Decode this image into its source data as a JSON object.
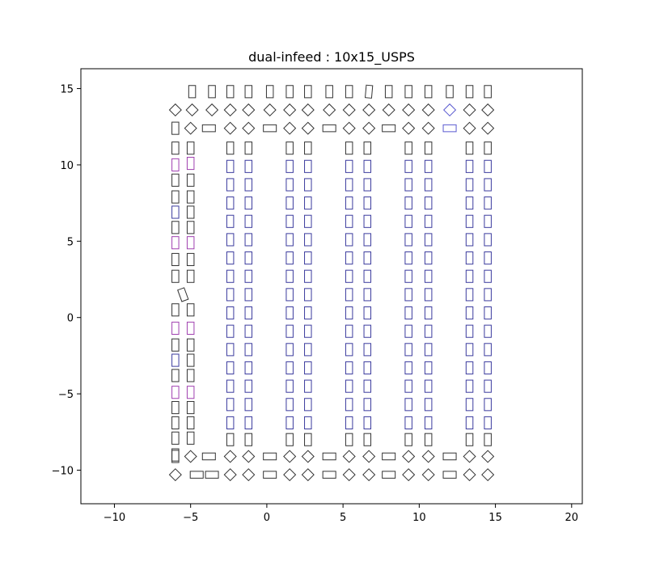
{
  "chart_data": {
    "type": "scatter",
    "title": "dual-infeed : 10x15_USPS",
    "xlabel": "",
    "ylabel": "",
    "xlim": [
      -12.2,
      20.7
    ],
    "ylim": [
      -12.2,
      16.3
    ],
    "xticks": [
      -10,
      -5,
      0,
      5,
      10,
      15,
      20
    ],
    "yticks": [
      -10,
      -5,
      0,
      5,
      10,
      15
    ],
    "grid": false,
    "colors": {
      "default": "#333333",
      "blue": "#3b3b9e",
      "magenta": "#a040b0",
      "light_blue": "#5a5ad0"
    },
    "series": [
      {
        "marker": "rect",
        "width": 0.45,
        "height": 0.8,
        "angle": 0,
        "points": [
          [
            -4.9,
            14.8,
            "default"
          ],
          [
            -3.6,
            14.8,
            "default"
          ],
          [
            -2.4,
            14.8,
            "default"
          ],
          [
            -1.2,
            14.8,
            "default"
          ],
          [
            0.2,
            14.8,
            "default"
          ],
          [
            1.5,
            14.8,
            "default"
          ],
          [
            2.7,
            14.8,
            "default"
          ],
          [
            4.1,
            14.8,
            "default"
          ],
          [
            5.4,
            14.8,
            "default"
          ],
          [
            8.0,
            14.8,
            "default"
          ],
          [
            9.3,
            14.8,
            "default"
          ],
          [
            10.6,
            14.8,
            "default"
          ],
          [
            12.0,
            14.8,
            "default"
          ],
          [
            13.3,
            14.8,
            "default"
          ],
          [
            14.5,
            14.8,
            "default"
          ],
          [
            -6.0,
            12.4,
            "default"
          ]
        ]
      },
      {
        "marker": "rect",
        "width": 0.42,
        "height": 0.82,
        "angle": -5,
        "points": [
          [
            6.7,
            14.8,
            "default"
          ]
        ]
      },
      {
        "marker": "rect",
        "width": 0.45,
        "height": 0.8,
        "angle": 0,
        "points_from_columns": true,
        "columns": [
          {
            "x": -6.0,
            "ys": [
              11.1,
              10.0,
              9.0,
              7.9,
              6.9,
              5.9,
              4.9,
              3.8,
              2.7,
              0.5,
              -0.7,
              -1.8,
              -2.8,
              -3.8,
              -4.9,
              -5.9,
              -6.9,
              -7.9,
              -9.0
            ],
            "colors": [
              "default",
              "magenta",
              "default",
              "default",
              "blue",
              "default",
              "magenta",
              "default",
              "default",
              "default",
              "magenta",
              "default",
              "blue",
              "default",
              "magenta",
              "default",
              "default",
              "default",
              "default"
            ]
          },
          {
            "x": -5.0,
            "ys": [
              11.1,
              10.1,
              9.0,
              7.9,
              6.9,
              5.9,
              4.9,
              3.8,
              2.7,
              0.5,
              -0.7,
              -1.8,
              -2.8,
              -3.8,
              -4.9,
              -5.9,
              -6.9,
              -7.9
            ],
            "colors": [
              "default",
              "magenta",
              "default",
              "default",
              "default",
              "default",
              "magenta",
              "default",
              "default",
              "default",
              "magenta",
              "default",
              "default",
              "default",
              "magenta",
              "default",
              "default",
              "default"
            ]
          }
        ]
      }
    ],
    "inner_columns": [
      {
        "x": -2.4
      },
      {
        "x": -1.2
      },
      {
        "x": 1.5
      },
      {
        "x": 2.7
      },
      {
        "x": 5.4
      },
      {
        "x": 6.6
      },
      {
        "x": 9.3
      },
      {
        "x": 10.6
      },
      {
        "x": 13.3
      },
      {
        "x": 14.5
      }
    ],
    "inner_column_ys": [
      11.1,
      9.9,
      8.7,
      7.5,
      6.3,
      5.1,
      3.9,
      2.7,
      1.5,
      0.3,
      -0.9,
      -2.1,
      -3.3,
      -4.5,
      -5.7,
      -6.9,
      -8.0
    ],
    "inner_column_colors": [
      "default",
      "blue",
      "blue",
      "blue",
      "blue",
      "blue",
      "blue",
      "blue",
      "blue",
      "blue",
      "blue",
      "blue",
      "blue",
      "blue",
      "blue",
      "blue",
      "default"
    ],
    "tilted_rect": {
      "x": -5.5,
      "y": 1.5,
      "width": 0.45,
      "height": 0.8,
      "angle": 20,
      "color": "default"
    },
    "diamond_rows": [
      {
        "y": 13.6,
        "items": [
          [
            -6.0,
            "d",
            "default"
          ],
          [
            -4.9,
            "d",
            "default"
          ],
          [
            -3.6,
            "d",
            "default"
          ],
          [
            -2.4,
            "d",
            "default"
          ],
          [
            -1.2,
            "d",
            "default"
          ],
          [
            0.2,
            "d",
            "default"
          ],
          [
            1.5,
            "d",
            "default"
          ],
          [
            2.7,
            "d",
            "default"
          ],
          [
            4.1,
            "d",
            "default"
          ],
          [
            5.4,
            "d",
            "default"
          ],
          [
            6.7,
            "d",
            "default"
          ],
          [
            8.0,
            "d",
            "default"
          ],
          [
            9.3,
            "d",
            "default"
          ],
          [
            10.6,
            "d",
            "default"
          ],
          [
            12.0,
            "d",
            "light_blue"
          ],
          [
            13.3,
            "d",
            "default"
          ],
          [
            14.5,
            "d",
            "default"
          ]
        ]
      },
      {
        "y": 12.4,
        "items": [
          [
            -5.0,
            "d",
            "default"
          ],
          [
            -3.8,
            "h",
            "default"
          ],
          [
            -2.4,
            "d",
            "default"
          ],
          [
            -1.2,
            "d",
            "default"
          ],
          [
            0.2,
            "h",
            "default"
          ],
          [
            1.5,
            "d",
            "default"
          ],
          [
            2.7,
            "d",
            "default"
          ],
          [
            4.1,
            "h",
            "default"
          ],
          [
            5.4,
            "d",
            "default"
          ],
          [
            6.7,
            "d",
            "default"
          ],
          [
            8.0,
            "h",
            "default"
          ],
          [
            9.3,
            "d",
            "default"
          ],
          [
            10.6,
            "d",
            "default"
          ],
          [
            12.0,
            "h",
            "light_blue"
          ],
          [
            13.3,
            "d",
            "default"
          ],
          [
            14.5,
            "d",
            "default"
          ]
        ]
      },
      {
        "y": -9.1,
        "items": [
          [
            -6.0,
            "r",
            "default"
          ],
          [
            -5.0,
            "d",
            "default"
          ],
          [
            -3.8,
            "h",
            "default"
          ],
          [
            -2.4,
            "d",
            "default"
          ],
          [
            -1.2,
            "d",
            "default"
          ],
          [
            0.2,
            "h",
            "default"
          ],
          [
            1.5,
            "d",
            "default"
          ],
          [
            2.7,
            "d",
            "default"
          ],
          [
            4.1,
            "h",
            "default"
          ],
          [
            5.4,
            "d",
            "default"
          ],
          [
            6.7,
            "d",
            "default"
          ],
          [
            8.0,
            "h",
            "default"
          ],
          [
            9.3,
            "d",
            "default"
          ],
          [
            10.6,
            "d",
            "default"
          ],
          [
            12.0,
            "h",
            "default"
          ],
          [
            13.3,
            "d",
            "default"
          ],
          [
            14.5,
            "d",
            "default"
          ]
        ]
      },
      {
        "y": -10.3,
        "items": [
          [
            -6.0,
            "d",
            "default"
          ],
          [
            -4.6,
            "h",
            "default"
          ],
          [
            -3.6,
            "h",
            "default"
          ],
          [
            -2.4,
            "d",
            "default"
          ],
          [
            -1.2,
            "d",
            "default"
          ],
          [
            0.2,
            "h",
            "default"
          ],
          [
            1.5,
            "d",
            "default"
          ],
          [
            2.7,
            "d",
            "default"
          ],
          [
            4.1,
            "h",
            "default"
          ],
          [
            5.4,
            "d",
            "default"
          ],
          [
            6.7,
            "d",
            "default"
          ],
          [
            8.0,
            "h",
            "default"
          ],
          [
            9.3,
            "d",
            "default"
          ],
          [
            10.6,
            "d",
            "default"
          ],
          [
            12.0,
            "h",
            "default"
          ],
          [
            13.3,
            "d",
            "default"
          ],
          [
            14.5,
            "d",
            "default"
          ]
        ]
      }
    ]
  }
}
